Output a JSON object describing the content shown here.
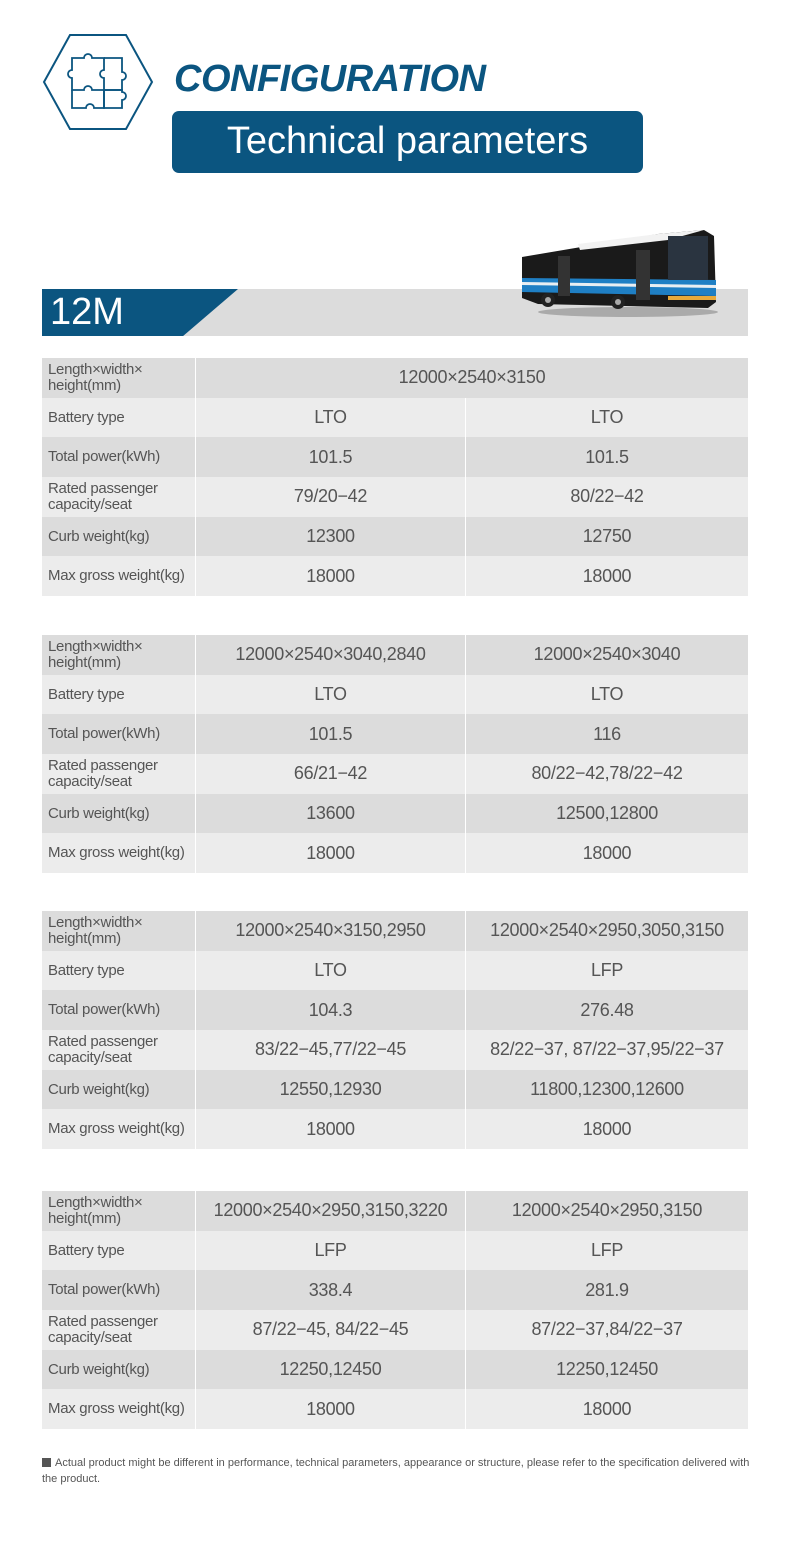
{
  "header": {
    "title": "CONFIGURATION",
    "subtitle": "Technical parameters",
    "icon": "puzzle-hexagon-icon"
  },
  "section": {
    "model": "12M"
  },
  "colors": {
    "brand": "#0b5580",
    "row_dark": "#dcdcdc",
    "row_light": "#ececec"
  },
  "row_labels": [
    "Length×width× height(mm)",
    "Battery type",
    "Total power(kWh)",
    "Rated passenger capacity/seat",
    "Curb weight(kg)",
    "Max gross weight(kg)"
  ],
  "tables": [
    {
      "rows": [
        [
          "12000×2540×3150"
        ],
        [
          "LTO",
          "LTO"
        ],
        [
          "101.5",
          "101.5"
        ],
        [
          "79/20−42",
          "80/22−42"
        ],
        [
          "12300",
          "12750"
        ],
        [
          "18000",
          "18000"
        ]
      ]
    },
    {
      "rows": [
        [
          "12000×2540×3040,2840",
          "12000×2540×3040"
        ],
        [
          "LTO",
          "LTO"
        ],
        [
          "101.5",
          "116"
        ],
        [
          "66/21−42",
          "80/22−42,78/22−42"
        ],
        [
          "13600",
          "12500,12800"
        ],
        [
          "18000",
          "18000"
        ]
      ]
    },
    {
      "rows": [
        [
          "12000×2540×3150,2950",
          "12000×2540×2950,3050,3150"
        ],
        [
          "LTO",
          "LFP"
        ],
        [
          "104.3",
          "276.48"
        ],
        [
          "83/22−45,77/22−45",
          "82/22−37, 87/22−37,95/22−37"
        ],
        [
          "12550,12930",
          "11800,12300,12600"
        ],
        [
          "18000",
          "18000"
        ]
      ]
    },
    {
      "rows": [
        [
          "12000×2540×2950,3150,3220",
          "12000×2540×2950,3150"
        ],
        [
          "LFP",
          "LFP"
        ],
        [
          "338.4",
          "281.9"
        ],
        [
          "87/22−45, 84/22−45",
          "87/22−37,84/22−37"
        ],
        [
          "12250,12450",
          "12250,12450"
        ],
        [
          "18000",
          "18000"
        ]
      ]
    }
  ],
  "footer": {
    "note": "Actual product might be different in performance, technical parameters, appearance or structure, please refer to the specification delivered with the product."
  }
}
